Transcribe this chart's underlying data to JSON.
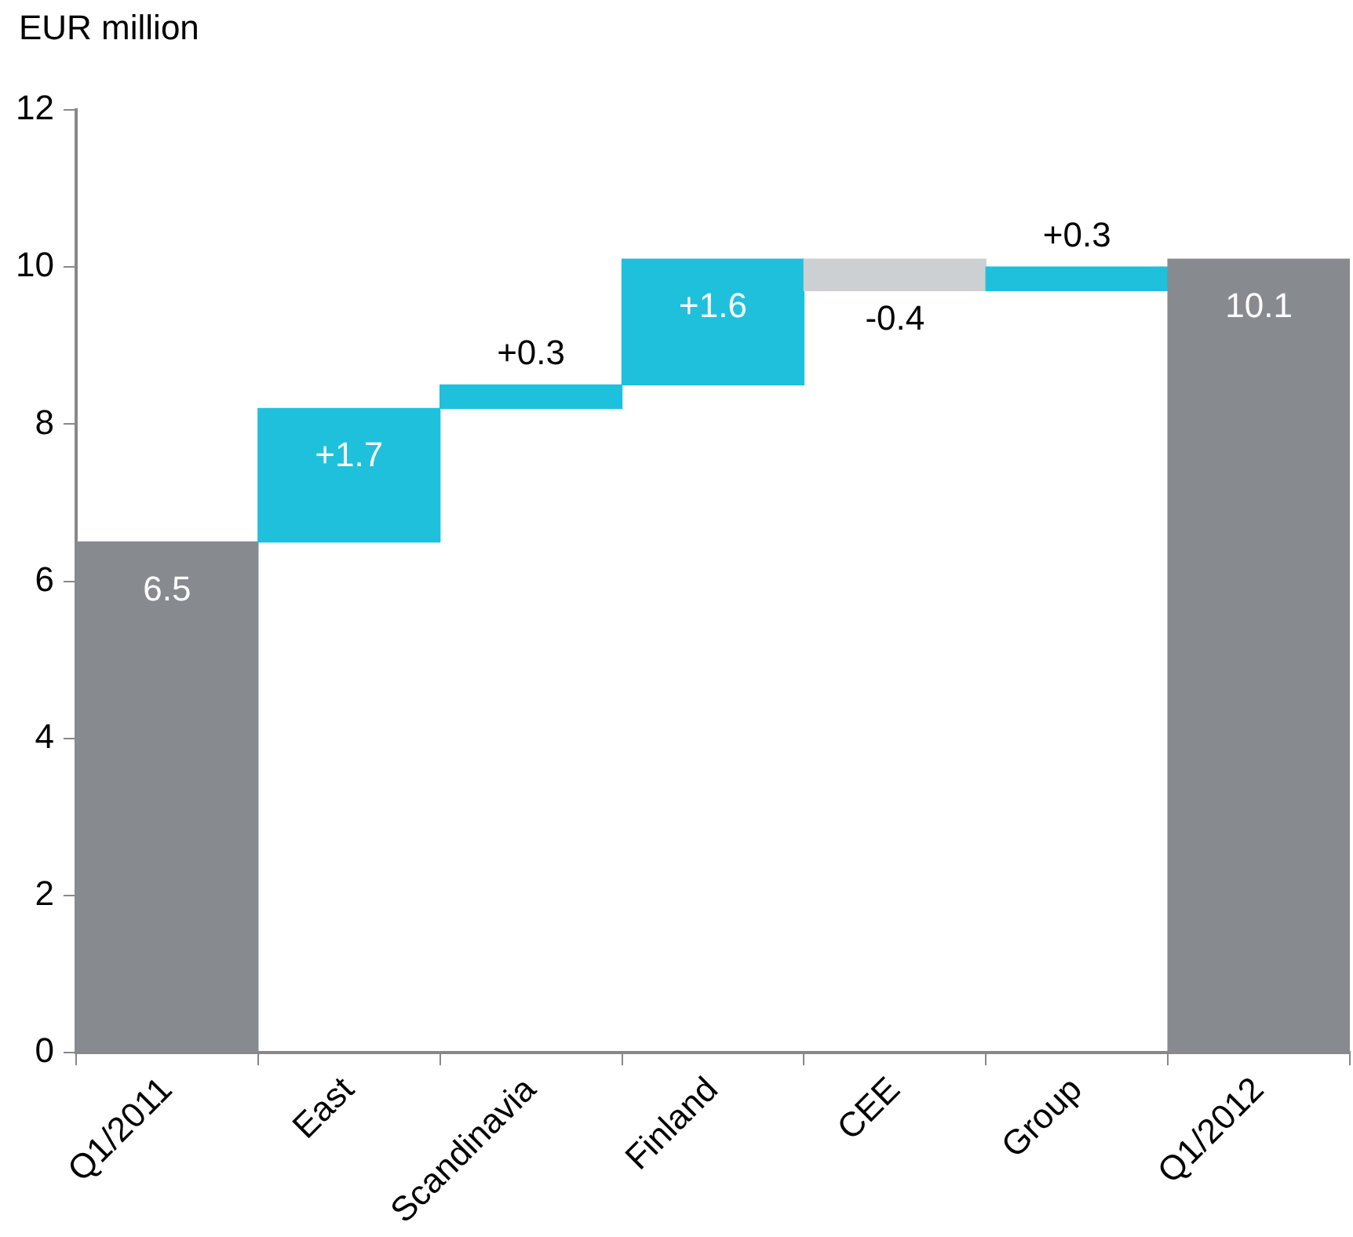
{
  "chart_data": {
    "type": "bar",
    "ylabel": "EUR million",
    "categories": [
      "Q1/2011",
      "East",
      "Scandinavia",
      "Finland",
      "CEE",
      "Group",
      "Q1/2012"
    ],
    "values": [
      6.5,
      1.7,
      0.3,
      1.6,
      -0.4,
      0.3,
      10.1
    ],
    "base": [
      0,
      6.5,
      8.2,
      8.5,
      10.1,
      9.7,
      0
    ],
    "colors": [
      "#878b90",
      "#1fc0dc",
      "#1fc0dc",
      "#1fc0dc",
      "#cdd0d2",
      "#1fc0dc",
      "#878b90"
    ],
    "value_labels": [
      "6.5",
      "+1.7",
      "+0.3",
      "+1.6",
      "-0.4",
      "+0.3",
      "10.1"
    ],
    "ylim": [
      0,
      12
    ],
    "yticks": [
      0,
      2,
      4,
      6,
      8,
      10,
      12
    ],
    "grid": false,
    "legend": false
  }
}
